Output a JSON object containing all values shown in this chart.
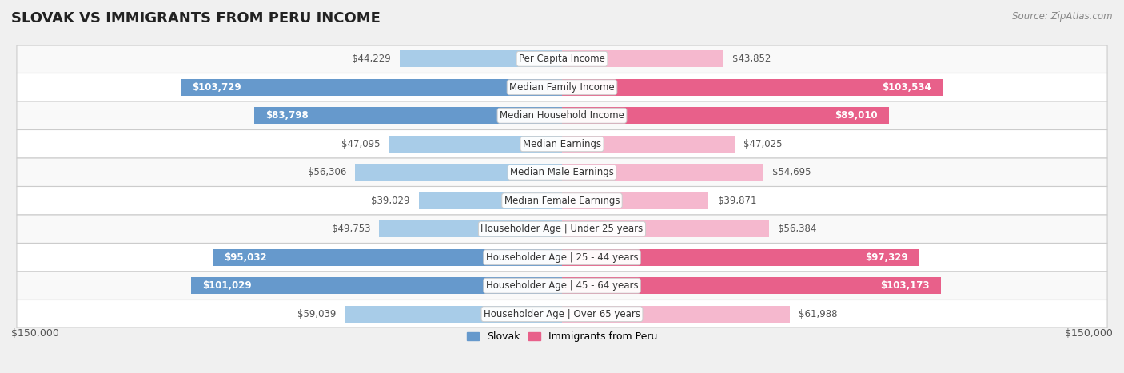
{
  "title": "SLOVAK VS IMMIGRANTS FROM PERU INCOME",
  "source": "Source: ZipAtlas.com",
  "categories": [
    "Per Capita Income",
    "Median Family Income",
    "Median Household Income",
    "Median Earnings",
    "Median Male Earnings",
    "Median Female Earnings",
    "Householder Age | Under 25 years",
    "Householder Age | 25 - 44 years",
    "Householder Age | 45 - 64 years",
    "Householder Age | Over 65 years"
  ],
  "slovak_values": [
    44229,
    103729,
    83798,
    47095,
    56306,
    39029,
    49753,
    95032,
    101029,
    59039
  ],
  "peru_values": [
    43852,
    103534,
    89010,
    47025,
    54695,
    39871,
    56384,
    97329,
    103173,
    61988
  ],
  "max_val": 150000,
  "slovak_color_light": "#a8cce8",
  "slovak_color_dark": "#6699cc",
  "peru_color_light": "#f5b8ce",
  "peru_color_dark": "#e8608a",
  "slovak_label": "Slovak",
  "peru_label": "Immigrants from Peru",
  "background_color": "#f0f0f0",
  "row_bg_even": "#f9f9f9",
  "row_bg_odd": "#ffffff",
  "bar_height": 0.6,
  "inner_text_threshold": 70000,
  "value_fontsize": 8.5,
  "cat_fontsize": 8.5,
  "title_fontsize": 13,
  "source_fontsize": 8.5,
  "legend_fontsize": 9
}
